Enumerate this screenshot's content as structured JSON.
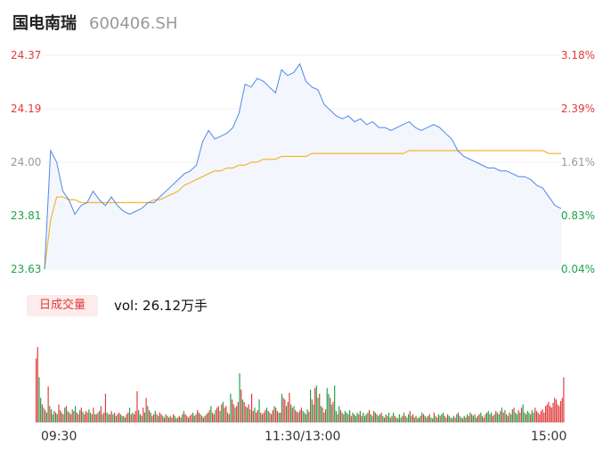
{
  "header": {
    "name": "国电南瑞",
    "code": "600406.SH"
  },
  "colors": {
    "price": "#4f86e8",
    "avg": "#f2b636",
    "up": "#e23a3a",
    "down": "#1fa24a",
    "neutral": "#999999"
  },
  "chart_data": {
    "type": "line",
    "price_axis": {
      "ylim": [
        23.63,
        24.37
      ],
      "ticks": [
        "24.37",
        "24.19",
        "24.00",
        "23.81",
        "23.63"
      ]
    },
    "pct_axis": {
      "ticks": [
        "3.18%",
        "2.39%",
        "1.61%",
        "0.83%",
        "0.04%"
      ]
    },
    "x_ticks": [
      "09:30",
      "11:30/13:00",
      "15:00"
    ],
    "series": [
      {
        "role": "price",
        "values": [
          23.63,
          24.04,
          24.0,
          23.9,
          23.87,
          23.82,
          23.85,
          23.86,
          23.9,
          23.87,
          23.85,
          23.88,
          23.85,
          23.83,
          23.82,
          23.83,
          23.84,
          23.86,
          23.86,
          23.88,
          23.9,
          23.92,
          23.94,
          23.96,
          23.97,
          23.99,
          24.07,
          24.11,
          24.08,
          24.09,
          24.1,
          24.12,
          24.17,
          24.27,
          24.26,
          24.29,
          24.28,
          24.26,
          24.24,
          24.32,
          24.3,
          24.31,
          24.34,
          24.28,
          24.26,
          24.25,
          24.2,
          24.18,
          24.16,
          24.15,
          24.16,
          24.14,
          24.15,
          24.13,
          24.14,
          24.12,
          24.12,
          24.11,
          24.12,
          24.13,
          24.14,
          24.12,
          24.11,
          24.12,
          24.13,
          24.12,
          24.1,
          24.08,
          24.04,
          24.02,
          24.01,
          24.0,
          23.99,
          23.98,
          23.98,
          23.97,
          23.97,
          23.96,
          23.95,
          23.95,
          23.94,
          23.92,
          23.91,
          23.88,
          23.85,
          23.84
        ]
      },
      {
        "role": "avg",
        "values": [
          23.63,
          23.8,
          23.88,
          23.88,
          23.87,
          23.87,
          23.86,
          23.86,
          23.86,
          23.86,
          23.86,
          23.86,
          23.86,
          23.86,
          23.86,
          23.86,
          23.86,
          23.86,
          23.87,
          23.87,
          23.88,
          23.89,
          23.9,
          23.92,
          23.93,
          23.94,
          23.95,
          23.96,
          23.97,
          23.97,
          23.98,
          23.98,
          23.99,
          23.99,
          24.0,
          24.0,
          24.01,
          24.01,
          24.01,
          24.02,
          24.02,
          24.02,
          24.02,
          24.02,
          24.03,
          24.03,
          24.03,
          24.03,
          24.03,
          24.03,
          24.03,
          24.03,
          24.03,
          24.03,
          24.03,
          24.03,
          24.03,
          24.03,
          24.03,
          24.03,
          24.04,
          24.04,
          24.04,
          24.04,
          24.04,
          24.04,
          24.04,
          24.04,
          24.04,
          24.04,
          24.04,
          24.04,
          24.04,
          24.04,
          24.04,
          24.04,
          24.04,
          24.04,
          24.04,
          24.04,
          24.04,
          24.04,
          24.04,
          24.03,
          24.03,
          24.03
        ]
      }
    ],
    "volume": {
      "label": "日成交量",
      "summary": "vol: 26.12万手",
      "values": [
        0.78,
        0.92,
        0.55,
        0.3,
        0.22,
        0.18,
        0.15,
        0.12,
        0.44,
        0.2,
        0.16,
        0.1,
        0.14,
        0.12,
        0.1,
        0.22,
        0.15,
        0.12,
        0.1,
        0.18,
        0.2,
        0.14,
        0.12,
        0.1,
        0.16,
        0.14,
        0.2,
        0.12,
        0.1,
        0.15,
        0.18,
        0.13,
        0.1,
        0.14,
        0.12,
        0.16,
        0.12,
        0.1,
        0.18,
        0.1,
        0.1,
        0.12,
        0.14,
        0.2,
        0.1,
        0.12,
        0.35,
        0.12,
        0.1,
        0.1,
        0.14,
        0.1,
        0.12,
        0.08,
        0.1,
        0.12,
        0.1,
        0.08,
        0.08,
        0.06,
        0.1,
        0.12,
        0.18,
        0.1,
        0.12,
        0.1,
        0.14,
        0.38,
        0.15,
        0.1,
        0.08,
        0.18,
        0.12,
        0.3,
        0.2,
        0.15,
        0.12,
        0.08,
        0.1,
        0.14,
        0.1,
        0.08,
        0.12,
        0.1,
        0.08,
        0.06,
        0.1,
        0.08,
        0.06,
        0.08,
        0.06,
        0.1,
        0.08,
        0.05,
        0.06,
        0.08,
        0.06,
        0.1,
        0.14,
        0.1,
        0.08,
        0.06,
        0.08,
        0.1,
        0.12,
        0.08,
        0.1,
        0.15,
        0.12,
        0.1,
        0.08,
        0.06,
        0.08,
        0.1,
        0.12,
        0.15,
        0.2,
        0.12,
        0.1,
        0.15,
        0.18,
        0.2,
        0.14,
        0.22,
        0.25,
        0.18,
        0.2,
        0.12,
        0.1,
        0.35,
        0.28,
        0.22,
        0.18,
        0.2,
        0.25,
        0.6,
        0.4,
        0.28,
        0.25,
        0.2,
        0.18,
        0.22,
        0.16,
        0.35,
        0.14,
        0.18,
        0.12,
        0.15,
        0.28,
        0.12,
        0.1,
        0.12,
        0.15,
        0.18,
        0.14,
        0.12,
        0.1,
        0.15,
        0.2,
        0.18,
        0.14,
        0.12,
        0.12,
        0.35,
        0.3,
        0.28,
        0.2,
        0.25,
        0.36,
        0.22,
        0.18,
        0.2,
        0.15,
        0.13,
        0.12,
        0.15,
        0.18,
        0.14,
        0.12,
        0.1,
        0.16,
        0.13,
        0.4,
        0.28,
        0.22,
        0.42,
        0.45,
        0.3,
        0.35,
        0.2,
        0.18,
        0.12,
        0.16,
        0.42,
        0.35,
        0.3,
        0.22,
        0.25,
        0.45,
        0.14,
        0.1,
        0.2,
        0.15,
        0.12,
        0.1,
        0.14,
        0.12,
        0.1,
        0.15,
        0.08,
        0.12,
        0.1,
        0.08,
        0.12,
        0.1,
        0.14,
        0.08,
        0.12,
        0.08,
        0.1,
        0.12,
        0.15,
        0.1,
        0.08,
        0.14,
        0.12,
        0.1,
        0.08,
        0.1,
        0.12,
        0.08,
        0.06,
        0.1,
        0.08,
        0.12,
        0.06,
        0.08,
        0.12,
        0.08,
        0.06,
        0.05,
        0.1,
        0.06,
        0.08,
        0.12,
        0.08,
        0.06,
        0.1,
        0.14,
        0.08,
        0.1,
        0.06,
        0.08,
        0.05,
        0.06,
        0.08,
        0.12,
        0.1,
        0.08,
        0.06,
        0.08,
        0.1,
        0.06,
        0.05,
        0.12,
        0.08,
        0.06,
        0.1,
        0.08,
        0.1,
        0.12,
        0.08,
        0.06,
        0.1,
        0.08,
        0.06,
        0.05,
        0.08,
        0.06,
        0.1,
        0.12,
        0.08,
        0.06,
        0.05,
        0.08,
        0.06,
        0.1,
        0.08,
        0.12,
        0.1,
        0.08,
        0.1,
        0.06,
        0.08,
        0.1,
        0.12,
        0.08,
        0.06,
        0.1,
        0.12,
        0.14,
        0.1,
        0.12,
        0.08,
        0.1,
        0.14,
        0.12,
        0.1,
        0.14,
        0.18,
        0.12,
        0.15,
        0.1,
        0.08,
        0.12,
        0.1,
        0.16,
        0.18,
        0.12,
        0.1,
        0.15,
        0.12,
        0.18,
        0.22,
        0.12,
        0.1,
        0.14,
        0.12,
        0.1,
        0.15,
        0.12,
        0.18,
        0.14,
        0.12,
        0.1,
        0.14,
        0.16,
        0.12,
        0.2,
        0.22,
        0.25,
        0.2,
        0.18,
        0.24,
        0.3,
        0.28,
        0.22,
        0.2,
        0.26,
        0.3,
        0.55
      ],
      "colors": [
        "r",
        "r",
        "g",
        "g",
        "r",
        "g",
        "r",
        "g",
        "r",
        "g",
        "r",
        "g",
        "g",
        "r",
        "g",
        "r",
        "r",
        "g",
        "r",
        "g",
        "r",
        "g",
        "r",
        "r",
        "g",
        "r",
        "g",
        "r",
        "r",
        "g",
        "r",
        "g",
        "r",
        "r",
        "r",
        "g",
        "g",
        "r",
        "r",
        "g",
        "r",
        "r",
        "g",
        "r",
        "g",
        "r",
        "r",
        "g",
        "r",
        "g",
        "r",
        "g",
        "r",
        "g",
        "r",
        "r",
        "g",
        "r",
        "g",
        "g",
        "r",
        "r",
        "g",
        "r",
        "g",
        "r",
        "r",
        "r",
        "g",
        "r",
        "g",
        "r",
        "g",
        "r",
        "g",
        "r",
        "g",
        "r",
        "r",
        "g",
        "r",
        "g",
        "r",
        "r",
        "g",
        "r",
        "g",
        "r",
        "r",
        "g",
        "r",
        "r",
        "g",
        "r",
        "g",
        "r",
        "g",
        "r",
        "g",
        "r",
        "r",
        "g",
        "r",
        "r",
        "g",
        "r",
        "g",
        "r",
        "r",
        "g",
        "r",
        "g",
        "r",
        "r",
        "g",
        "r",
        "g",
        "r",
        "r",
        "g",
        "r",
        "r",
        "g",
        "r",
        "g",
        "r",
        "r",
        "g",
        "r",
        "g",
        "r",
        "r",
        "g",
        "r",
        "r",
        "g",
        "r",
        "g",
        "r",
        "r",
        "g",
        "r",
        "g",
        "r",
        "r",
        "g",
        "r",
        "r",
        "g",
        "r",
        "g",
        "r",
        "r",
        "g",
        "r",
        "g",
        "r",
        "r",
        "g",
        "r",
        "r",
        "g",
        "r",
        "g",
        "r",
        "r",
        "g",
        "r",
        "r",
        "g",
        "r",
        "g",
        "r",
        "r",
        "g",
        "r",
        "r",
        "g",
        "g",
        "r",
        "g",
        "r",
        "g",
        "r",
        "g",
        "r",
        "g",
        "g",
        "r",
        "g",
        "r",
        "g",
        "r",
        "g",
        "g",
        "r",
        "g",
        "r",
        "g",
        "g",
        "r",
        "g",
        "r",
        "g",
        "r",
        "g",
        "g",
        "r",
        "g",
        "r",
        "g",
        "r",
        "g",
        "g",
        "r",
        "g",
        "r",
        "g",
        "g",
        "r",
        "g",
        "r",
        "g",
        "g",
        "r",
        "g",
        "r",
        "g",
        "g",
        "r",
        "g",
        "r",
        "g",
        "r",
        "g",
        "g",
        "r",
        "g",
        "r",
        "g",
        "r",
        "g",
        "g",
        "r",
        "g",
        "r",
        "g",
        "g",
        "r",
        "g",
        "r",
        "g",
        "r",
        "g",
        "g",
        "r",
        "g",
        "r",
        "g",
        "r",
        "g",
        "r",
        "g",
        "g",
        "r",
        "g",
        "r",
        "g",
        "r",
        "g",
        "g",
        "r",
        "g",
        "r",
        "g",
        "g",
        "r",
        "g",
        "r",
        "g",
        "r",
        "g",
        "g",
        "r",
        "g",
        "r",
        "g",
        "r",
        "g",
        "r",
        "g",
        "g",
        "r",
        "g",
        "r",
        "g",
        "r",
        "g",
        "r",
        "g",
        "g",
        "r",
        "g",
        "r",
        "g",
        "r",
        "g",
        "g",
        "r",
        "g",
        "r",
        "g",
        "r",
        "g",
        "r",
        "g",
        "g",
        "r",
        "g",
        "g",
        "r",
        "g",
        "r",
        "g",
        "g",
        "r",
        "g",
        "g",
        "r",
        "g",
        "g",
        "r"
      ]
    }
  }
}
